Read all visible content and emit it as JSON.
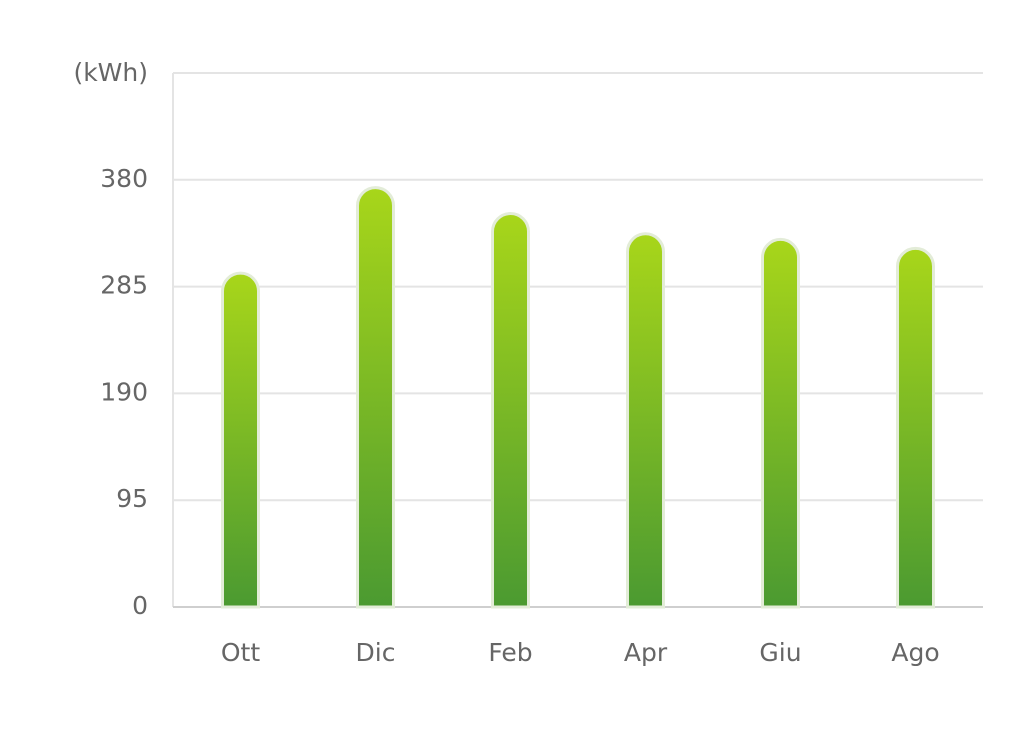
{
  "chart_data": {
    "type": "bar",
    "y_label": "(kWh)",
    "categories": [
      "Ott",
      "Dic",
      "Feb",
      "Apr",
      "Giu",
      "Ago"
    ],
    "values": [
      297,
      373,
      350,
      332,
      327,
      319
    ],
    "gradient": [
      "#a8d61a",
      "#4b9a31"
    ],
    "ylim": [
      0,
      475
    ],
    "yticks": [
      0,
      95,
      190,
      285,
      380
    ],
    "grid": true
  }
}
